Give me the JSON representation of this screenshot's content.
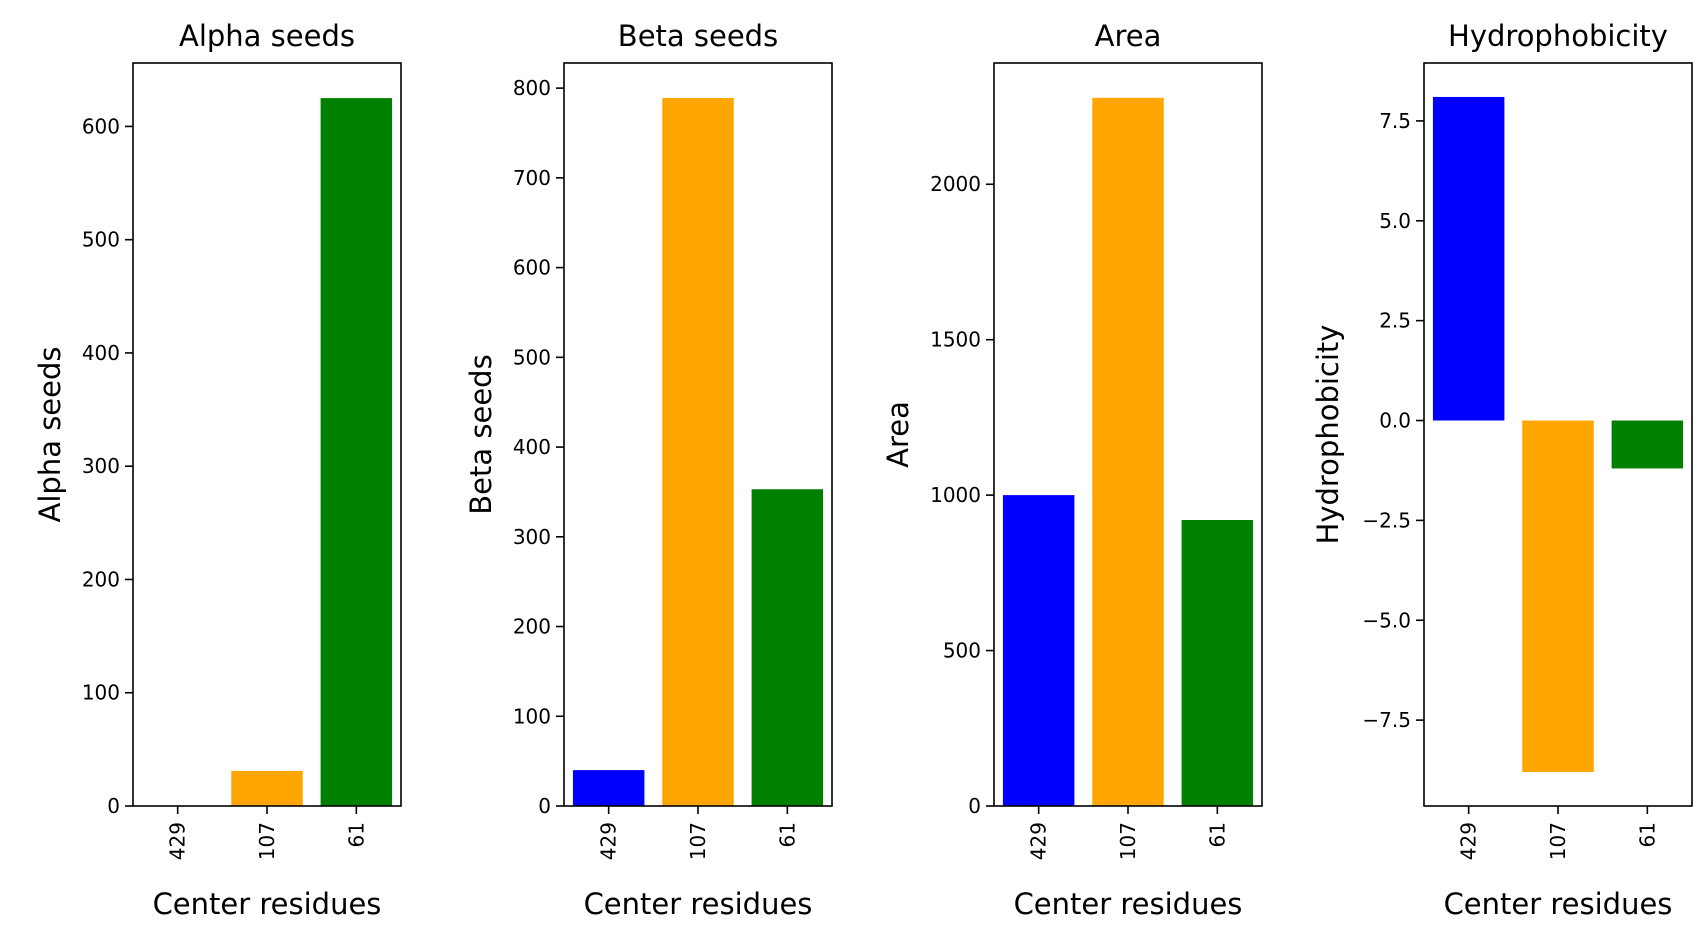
{
  "chart_data": [
    {
      "type": "bar",
      "title": "Alpha seeds",
      "xlabel": "Center residues",
      "ylabel": "Alpha seeds",
      "categories": [
        "429",
        "107",
        "61"
      ],
      "values": [
        0,
        31,
        625
      ],
      "colors": [
        "#0000ff",
        "#ffa500",
        "#008000"
      ],
      "ylim": [
        0,
        656
      ],
      "yticks": [
        0,
        100,
        200,
        300,
        400,
        500,
        600
      ],
      "ytick_labels": [
        "0",
        "100",
        "200",
        "300",
        "400",
        "500",
        "600"
      ],
      "grid": false
    },
    {
      "type": "bar",
      "title": "Beta seeds",
      "xlabel": "Center residues",
      "ylabel": "Beta seeds",
      "categories": [
        "429",
        "107",
        "61"
      ],
      "values": [
        40,
        789,
        353
      ],
      "colors": [
        "#0000ff",
        "#ffa500",
        "#008000"
      ],
      "ylim": [
        0,
        828
      ],
      "yticks": [
        0,
        100,
        200,
        300,
        400,
        500,
        600,
        700,
        800
      ],
      "ytick_labels": [
        "0",
        "100",
        "200",
        "300",
        "400",
        "500",
        "600",
        "700",
        "800"
      ],
      "grid": false
    },
    {
      "type": "bar",
      "title": "Area",
      "xlabel": "Center residues",
      "ylabel": "Area",
      "categories": [
        "429",
        "107",
        "61"
      ],
      "values": [
        1000,
        2278,
        920
      ],
      "colors": [
        "#0000ff",
        "#ffa500",
        "#008000"
      ],
      "ylim": [
        0,
        2390
      ],
      "yticks": [
        0,
        500,
        1000,
        1500,
        2000
      ],
      "ytick_labels": [
        "0",
        "500",
        "1000",
        "1500",
        "2000"
      ],
      "grid": false
    },
    {
      "type": "bar",
      "title": "Hydrophobicity",
      "xlabel": "Center residues",
      "ylabel": "Hydrophobicity",
      "categories": [
        "429",
        "107",
        "61"
      ],
      "values": [
        8.1,
        -8.8,
        -1.2
      ],
      "colors": [
        "#0000ff",
        "#ffa500",
        "#008000"
      ],
      "ylim": [
        -9.65,
        8.95
      ],
      "yticks": [
        -7.5,
        -5.0,
        -2.5,
        0.0,
        2.5,
        5.0,
        7.5
      ],
      "ytick_labels": [
        "−7.5",
        "−5.0",
        "−2.5",
        "0.0",
        "2.5",
        "5.0",
        "7.5"
      ],
      "grid": false
    }
  ]
}
